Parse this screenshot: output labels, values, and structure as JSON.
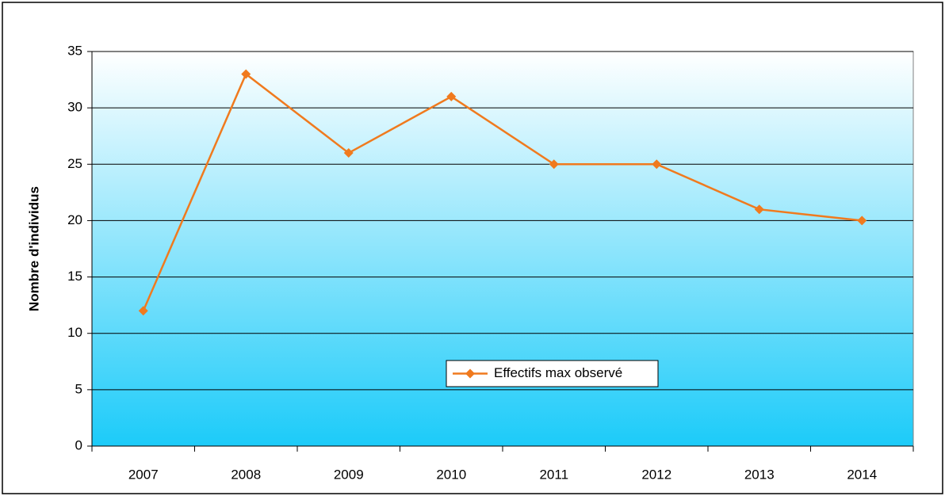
{
  "chart_data": {
    "type": "line",
    "y_label": "Nombre d'individus",
    "categories": [
      "2007",
      "2008",
      "2009",
      "2010",
      "2011",
      "2012",
      "2013",
      "2014"
    ],
    "series": [
      {
        "name": "Effectifs max observé",
        "color": "#f07a1e",
        "values": [
          12,
          33,
          26,
          31,
          25,
          25,
          21,
          20
        ]
      }
    ],
    "ylim": [
      0,
      35
    ],
    "yticks": [
      0,
      5,
      10,
      15,
      20,
      25,
      30,
      35
    ],
    "grid": true
  }
}
